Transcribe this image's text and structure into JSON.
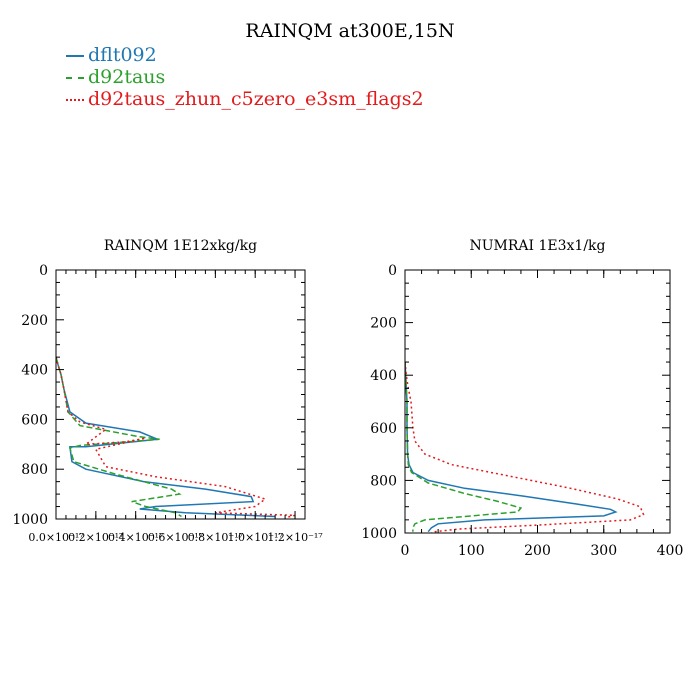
{
  "page": {
    "title": "RAINQM at300E,15N",
    "legend": [
      {
        "name": "dflt092",
        "color": "#1f77b4",
        "dash": "solid"
      },
      {
        "name": "d92taus",
        "color": "#2ca02c",
        "dash": "dashed"
      },
      {
        "name": "d92taus_zhun_c5zero_e3sm_flags2",
        "color": "#e31a1c",
        "dash": "dotted"
      }
    ]
  },
  "chart_data": [
    {
      "type": "line",
      "title": "RAINQM  1E12xkg/kg",
      "xlim": [
        0,
        1.25e-17
      ],
      "ylim": [
        1000,
        0
      ],
      "xticks": [
        0,
        2e-18,
        4e-18,
        6e-18,
        8e-18,
        1e-17,
        1.2e-17
      ],
      "xticklabels": [
        "0.0×10⁻¹⁷",
        "0.2×10⁻¹⁷",
        "0.4×10⁻¹⁷",
        "0.6×10⁻¹⁷",
        "0.8×10⁻¹⁷",
        "1.0×10⁻¹⁷",
        "1.2×10⁻¹⁷"
      ],
      "yticks": [
        0,
        200,
        400,
        600,
        800,
        1000
      ],
      "yticklabels": [
        "0",
        "200",
        "400",
        "600",
        "800",
        "1000"
      ],
      "series": [
        {
          "name": "dflt092",
          "color": "#1f77b4",
          "dash": "solid",
          "x": [
            0,
            1e-19,
            2.5e-19,
            4e-19,
            7e-19,
            1.5e-18,
            4.2e-18,
            5.1e-18,
            1.5e-18,
            7e-19,
            8e-19,
            1.5e-18,
            4.4e-18,
            7.5e-18,
            9.8e-18,
            9.9e-18,
            5e-18,
            4.2e-18,
            6.5e-18,
            1.1e-17
          ],
          "y": [
            350,
            380,
            420,
            480,
            570,
            615,
            650,
            680,
            710,
            710,
            770,
            800,
            850,
            880,
            910,
            930,
            950,
            960,
            975,
            990
          ]
        },
        {
          "name": "d92taus",
          "color": "#2ca02c",
          "dash": "dashed",
          "x": [
            0,
            1e-19,
            2.5e-19,
            4e-19,
            6e-19,
            1.2e-18,
            4.2e-18,
            5.2e-18,
            1.2e-18,
            7e-19,
            9e-19,
            3e-18,
            5.8e-18,
            6.2e-18,
            3.8e-18,
            4.5e-18,
            6e-18,
            6.3e-18
          ],
          "y": [
            350,
            380,
            420,
            480,
            570,
            625,
            670,
            680,
            705,
            715,
            770,
            820,
            880,
            900,
            930,
            950,
            975,
            990
          ]
        },
        {
          "name": "d92taus_zhun_c5zero_e3sm_flags2",
          "color": "#e31a1c",
          "dash": "dotted",
          "x": [
            0,
            1e-19,
            2.5e-19,
            4e-19,
            6e-19,
            1.2e-18,
            2.5e-18,
            1.5e-18,
            3.5e-18,
            4.5e-18,
            2e-18,
            2.5e-18,
            5e-18,
            8.5e-18,
            1.05e-17,
            1e-17,
            8e-18,
            1.2e-17,
            1.15e-17
          ],
          "y": [
            350,
            380,
            420,
            480,
            570,
            610,
            640,
            700,
            690,
            675,
            720,
            790,
            830,
            870,
            920,
            950,
            975,
            985,
            995
          ]
        }
      ]
    },
    {
      "type": "line",
      "title": "NUMRAI  1E3x1/kg",
      "xlim": [
        0,
        400
      ],
      "ylim": [
        1000,
        0
      ],
      "xticks": [
        0,
        100,
        200,
        300,
        400
      ],
      "xticklabels": [
        "0",
        "100",
        "200",
        "300",
        "400"
      ],
      "yticks": [
        0,
        200,
        400,
        600,
        800,
        1000
      ],
      "yticklabels": [
        "0",
        "200",
        "400",
        "600",
        "800",
        "1000"
      ],
      "series": [
        {
          "name": "dflt092",
          "color": "#1f77b4",
          "dash": "solid",
          "x": [
            0,
            1,
            2,
            3,
            3,
            4,
            6,
            12,
            35,
            90,
            180,
            260,
            310,
            318,
            300,
            120,
            50,
            40,
            35
          ],
          "y": [
            350,
            400,
            450,
            500,
            600,
            700,
            740,
            770,
            800,
            830,
            860,
            890,
            910,
            920,
            935,
            950,
            965,
            980,
            995
          ]
        },
        {
          "name": "d92taus",
          "color": "#2ca02c",
          "dash": "dashed",
          "x": [
            0,
            1,
            2,
            3,
            3,
            4,
            5,
            10,
            35,
            90,
            140,
            175,
            170,
            100,
            30,
            15,
            12,
            12
          ],
          "y": [
            350,
            400,
            450,
            500,
            600,
            700,
            740,
            770,
            810,
            850,
            880,
            905,
            920,
            935,
            950,
            965,
            980,
            995
          ]
        },
        {
          "name": "d92taus_zhun_c5zero_e3sm_flags2",
          "color": "#e31a1c",
          "dash": "dotted",
          "x": [
            0,
            2,
            5,
            9,
            12,
            15,
            30,
            70,
            150,
            250,
            320,
            355,
            360,
            340,
            200,
            80,
            45,
            40
          ],
          "y": [
            350,
            400,
            450,
            500,
            600,
            650,
            700,
            740,
            780,
            830,
            870,
            900,
            930,
            950,
            970,
            985,
            995,
            1000
          ]
        }
      ]
    }
  ]
}
